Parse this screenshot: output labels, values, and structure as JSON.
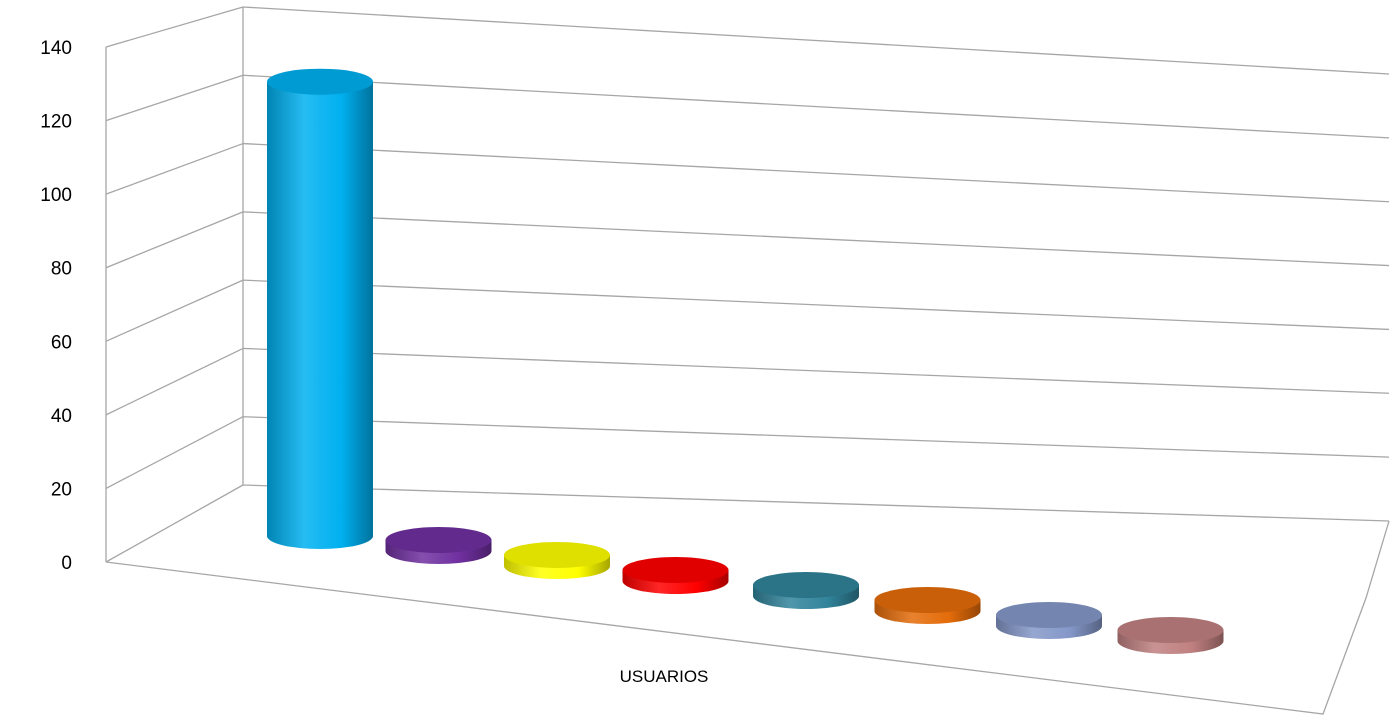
{
  "chart_data": {
    "type": "bar",
    "style": "3d-cylinder",
    "categories": [
      "USUARIOS"
    ],
    "series": [
      {
        "values": [
          130
        ],
        "color": "#00b0f0"
      },
      {
        "values": [
          2
        ],
        "color": "#7030a0"
      },
      {
        "values": [
          2
        ],
        "color": "#ffff00"
      },
      {
        "values": [
          1
        ],
        "color": "#ff0000"
      },
      {
        "values": [
          1
        ],
        "color": "#31849b"
      },
      {
        "values": [
          1
        ],
        "color": "#e46c0a"
      },
      {
        "values": [
          1
        ],
        "color": "#8497c8"
      },
      {
        "values": [
          1
        ],
        "color": "#c08080"
      }
    ],
    "y_ticks": [
      "0",
      "20",
      "40",
      "60",
      "80",
      "100",
      "120",
      "140"
    ],
    "ylim": [
      0,
      140
    ],
    "grid": true,
    "legend": "none",
    "title": "",
    "xlabel": "",
    "ylabel": ""
  }
}
